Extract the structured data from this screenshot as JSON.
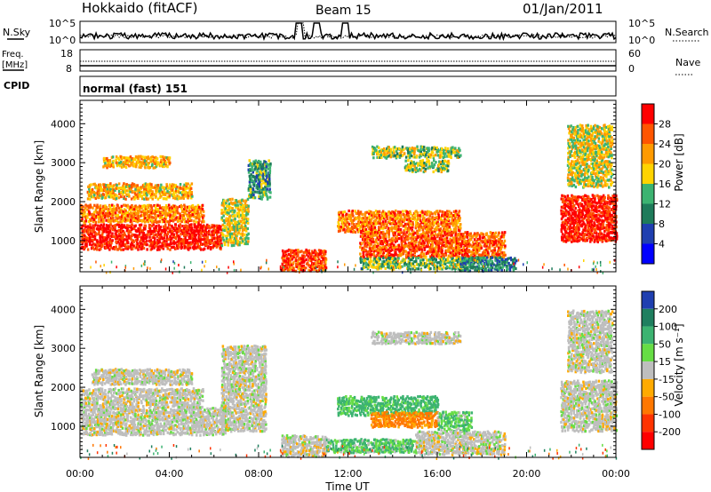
{
  "header": {
    "station": "Hokkaido (fitACF)",
    "beam": "Beam 15",
    "date": "01/Jan/2011"
  },
  "strips": {
    "nsky": {
      "label": "N.Sky",
      "left_ticks": [
        "10^5",
        "10^0"
      ],
      "right_ticks": [
        "10^5",
        "10^0"
      ],
      "right_label": "N.Search"
    },
    "freq": {
      "label_line1": "Freq.",
      "label_line2": "[MHz]",
      "left_ticks": [
        "18",
        "8"
      ],
      "right_ticks": [
        "60",
        "0"
      ],
      "right_label": "Nave"
    },
    "cpid": {
      "label": "CPID",
      "text": "normal (fast) 151"
    }
  },
  "axes": {
    "xlabel": "Time UT",
    "x_ticks": [
      "00:00",
      "04:00",
      "08:00",
      "12:00",
      "16:00",
      "20:00",
      "00:00"
    ],
    "ylabel": "Slant Range [km]",
    "y_ticks": [
      "1000",
      "2000",
      "3000",
      "4000"
    ]
  },
  "colorbars": {
    "power": {
      "label": "Power [dB]",
      "ticks": [
        "28",
        "24",
        "20",
        "16",
        "12",
        "8",
        "4"
      ],
      "colors": [
        "#ff0000",
        "#ff5500",
        "#ff9a00",
        "#ffd300",
        "#3cb371",
        "#1e7b5a",
        "#1f3fb0",
        "#0000ff"
      ]
    },
    "velocity": {
      "label": "Velocity [m s⁻¹]",
      "ticks": [
        "200",
        "100",
        "50",
        "15",
        "-15",
        "-50",
        "-100",
        "-200"
      ],
      "colors": [
        "#1f3fb0",
        "#1f7f5f",
        "#3cb371",
        "#66dd44",
        "#bebebe",
        "#ffaa00",
        "#ff7700",
        "#ff3300",
        "#ff0000"
      ]
    }
  },
  "chart_data": [
    {
      "type": "heatmap",
      "panel": "power",
      "xlabel": "Time UT",
      "ylabel": "Slant Range [km]",
      "xlim": [
        0,
        24
      ],
      "ylim": [
        200,
        4600
      ],
      "value_unit": "dB",
      "value_range": [
        0,
        30
      ],
      "regions": [
        {
          "t": [
            0.0,
            6.3
          ],
          "r": [
            800,
            1450
          ],
          "value": 28
        },
        {
          "t": [
            0.0,
            5.5
          ],
          "r": [
            1500,
            1950
          ],
          "value": 22
        },
        {
          "t": [
            0.3,
            5.0
          ],
          "r": [
            2100,
            2500
          ],
          "value": 18
        },
        {
          "t": [
            1.0,
            4.0
          ],
          "r": [
            2900,
            3200
          ],
          "value": 18
        },
        {
          "t": [
            6.3,
            7.5
          ],
          "r": [
            900,
            2100
          ],
          "value": 16
        },
        {
          "t": [
            7.5,
            8.5
          ],
          "r": [
            2100,
            3100
          ],
          "value": 10
        },
        {
          "t": [
            9.0,
            11.0
          ],
          "r": [
            250,
            800
          ],
          "value": 26
        },
        {
          "t": [
            11.5,
            17.0
          ],
          "r": [
            1250,
            1800
          ],
          "value": 22
        },
        {
          "t": [
            12.5,
            19.0
          ],
          "r": [
            600,
            1250
          ],
          "value": 24
        },
        {
          "t": [
            12.5,
            17.5
          ],
          "r": [
            300,
            600
          ],
          "value": 12
        },
        {
          "t": [
            17.0,
            19.5
          ],
          "r": [
            250,
            600
          ],
          "value": 8
        },
        {
          "t": [
            13.0,
            17.0
          ],
          "r": [
            3150,
            3450
          ],
          "value": 14
        },
        {
          "t": [
            14.5,
            16.5
          ],
          "r": [
            2800,
            3100
          ],
          "value": 14
        },
        {
          "t": [
            21.5,
            24.0
          ],
          "r": [
            1000,
            2200
          ],
          "value": 28
        },
        {
          "t": [
            21.8,
            23.8
          ],
          "r": [
            2400,
            4000
          ],
          "value": 16
        }
      ]
    },
    {
      "type": "heatmap",
      "panel": "velocity",
      "xlabel": "Time UT",
      "ylabel": "Slant Range [km]",
      "xlim": [
        0,
        24
      ],
      "ylim": [
        200,
        4600
      ],
      "value_unit": "m s-1",
      "value_range": [
        -200,
        200
      ],
      "regions": [
        {
          "t": [
            0.0,
            6.5
          ],
          "r": [
            800,
            1500
          ],
          "value": 0
        },
        {
          "t": [
            0.0,
            5.5
          ],
          "r": [
            1500,
            2000
          ],
          "value": 0
        },
        {
          "t": [
            0.5,
            5.0
          ],
          "r": [
            2100,
            2500
          ],
          "value": 0
        },
        {
          "t": [
            6.3,
            8.3
          ],
          "r": [
            900,
            3100
          ],
          "value": 0
        },
        {
          "t": [
            9.0,
            11.0
          ],
          "r": [
            250,
            800
          ],
          "value": 0
        },
        {
          "t": [
            11.5,
            16.0
          ],
          "r": [
            1300,
            1800
          ],
          "value": 40
        },
        {
          "t": [
            13.0,
            16.0
          ],
          "r": [
            1000,
            1400
          ],
          "value": -40
        },
        {
          "t": [
            16.0,
            17.5
          ],
          "r": [
            900,
            1400
          ],
          "value": 30
        },
        {
          "t": [
            11.0,
            15.0
          ],
          "r": [
            350,
            700
          ],
          "value": 30
        },
        {
          "t": [
            15.0,
            19.0
          ],
          "r": [
            300,
            900
          ],
          "value": 0
        },
        {
          "t": [
            13.0,
            17.0
          ],
          "r": [
            3150,
            3450
          ],
          "value": 0
        },
        {
          "t": [
            21.5,
            24.0
          ],
          "r": [
            900,
            2200
          ],
          "value": 0
        },
        {
          "t": [
            21.8,
            23.8
          ],
          "r": [
            2400,
            4000
          ],
          "value": 0
        }
      ]
    }
  ]
}
